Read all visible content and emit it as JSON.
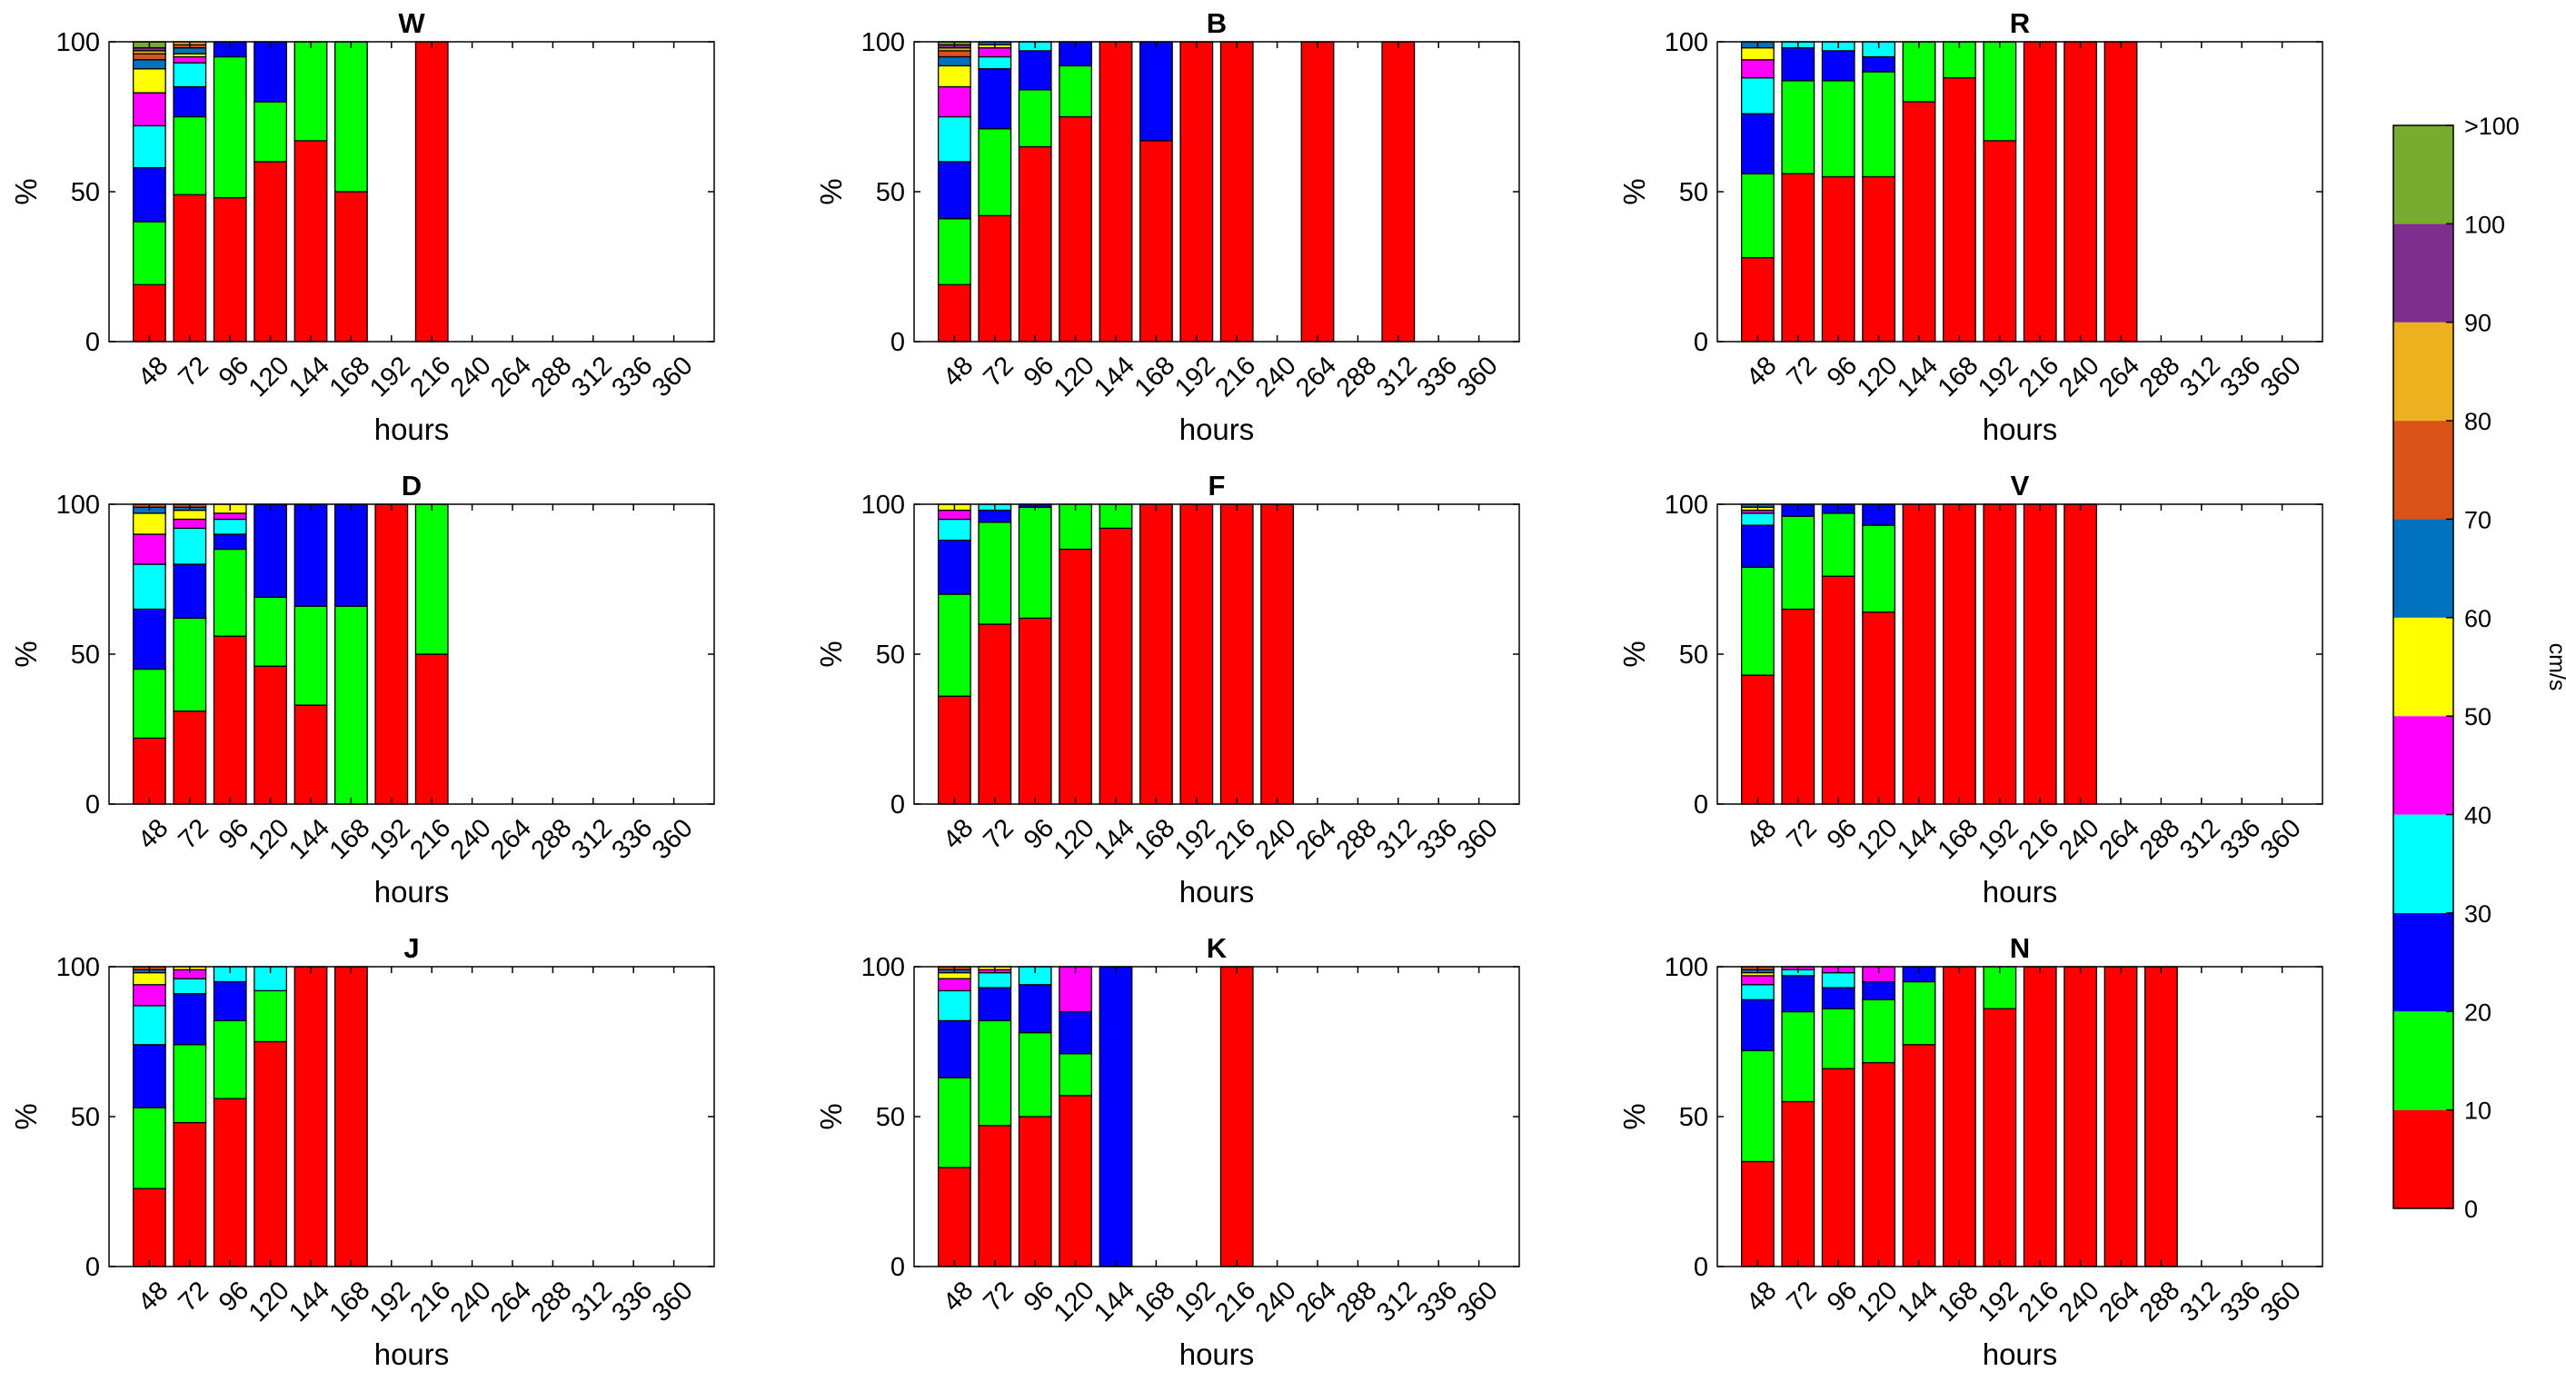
{
  "colors": {
    "bins": [
      "#ff0000",
      "#00ff00",
      "#0000ff",
      "#00ffff",
      "#ff00ff",
      "#ffff00",
      "#0072bd",
      "#d95319",
      "#edb120",
      "#7e2f8e",
      "#77ac30"
    ],
    "stroke": "#000000"
  },
  "colorbar": {
    "tick_labels": [
      "0",
      "10",
      "20",
      "30",
      "40",
      "50",
      "60",
      "70",
      "80",
      "90",
      "100",
      ">100"
    ],
    "label": "cm/s"
  },
  "chart_data": [
    {
      "type": "bar",
      "stacked": true,
      "title": "W",
      "categories": [
        "48",
        "72",
        "96",
        "120",
        "144",
        "168",
        "192",
        "216",
        "240",
        "264",
        "288",
        "312",
        "336",
        "360"
      ],
      "xlabel": "hours",
      "ylabel": "%",
      "ylim": [
        0,
        100
      ],
      "yticks": [
        "0",
        "50",
        "100"
      ],
      "stacks": [
        [
          19,
          21,
          18,
          14,
          11,
          8,
          3,
          2,
          1,
          1,
          2
        ],
        [
          49,
          26,
          10,
          8,
          2,
          1,
          2,
          1,
          1
        ],
        [
          48,
          47,
          5
        ],
        [
          60,
          20,
          20
        ],
        [
          67,
          33
        ],
        [
          50,
          50
        ],
        [],
        [
          100
        ],
        [],
        [],
        [],
        [],
        [],
        []
      ]
    },
    {
      "type": "bar",
      "stacked": true,
      "title": "B",
      "categories": [
        "48",
        "72",
        "96",
        "120",
        "144",
        "168",
        "192",
        "216",
        "240",
        "264",
        "288",
        "312",
        "336",
        "360"
      ],
      "xlabel": "hours",
      "ylabel": "%",
      "ylim": [
        0,
        100
      ],
      "yticks": [
        "0",
        "50",
        "100"
      ],
      "stacks": [
        [
          19,
          22,
          19,
          15,
          10,
          7,
          3,
          2,
          1,
          1,
          1
        ],
        [
          42,
          29,
          20,
          4,
          3,
          1,
          1
        ],
        [
          65,
          19,
          13,
          3
        ],
        [
          75,
          17,
          8
        ],
        [
          100
        ],
        [
          67,
          0,
          33
        ],
        [
          100
        ],
        [
          100
        ],
        [],
        [
          100
        ],
        [],
        [
          100
        ],
        [],
        []
      ]
    },
    {
      "type": "bar",
      "stacked": true,
      "title": "R",
      "categories": [
        "48",
        "72",
        "96",
        "120",
        "144",
        "168",
        "192",
        "216",
        "240",
        "264",
        "288",
        "312",
        "336",
        "360"
      ],
      "xlabel": "hours",
      "ylabel": "%",
      "ylim": [
        0,
        100
      ],
      "yticks": [
        "0",
        "50",
        "100"
      ],
      "stacks": [
        [
          28,
          28,
          20,
          12,
          6,
          4,
          2
        ],
        [
          56,
          31,
          11,
          2
        ],
        [
          55,
          32,
          10,
          3
        ],
        [
          55,
          35,
          5,
          5
        ],
        [
          80,
          20
        ],
        [
          88,
          12
        ],
        [
          67,
          33
        ],
        [
          100
        ],
        [
          100
        ],
        [
          100
        ],
        [],
        [],
        [],
        []
      ]
    },
    {
      "type": "bar",
      "stacked": true,
      "title": "D",
      "categories": [
        "48",
        "72",
        "96",
        "120",
        "144",
        "168",
        "192",
        "216",
        "240",
        "264",
        "288",
        "312",
        "336",
        "360"
      ],
      "xlabel": "hours",
      "ylabel": "%",
      "ylim": [
        0,
        100
      ],
      "yticks": [
        "0",
        "50",
        "100"
      ],
      "stacks": [
        [
          22,
          23,
          20,
          15,
          10,
          7,
          2,
          1
        ],
        [
          31,
          31,
          18,
          12,
          3,
          3,
          1,
          1
        ],
        [
          56,
          29,
          5,
          5,
          2,
          3
        ],
        [
          46,
          23,
          31
        ],
        [
          33,
          33,
          34
        ],
        [
          0,
          66,
          34
        ],
        [
          100
        ],
        [
          50,
          50
        ],
        [],
        [],
        [],
        [],
        [],
        []
      ]
    },
    {
      "type": "bar",
      "stacked": true,
      "title": "F",
      "categories": [
        "48",
        "72",
        "96",
        "120",
        "144",
        "168",
        "192",
        "216",
        "240",
        "264",
        "288",
        "312",
        "336",
        "360"
      ],
      "xlabel": "hours",
      "ylabel": "%",
      "ylim": [
        0,
        100
      ],
      "yticks": [
        "0",
        "50",
        "100"
      ],
      "stacks": [
        [
          36,
          34,
          18,
          7,
          3,
          2
        ],
        [
          60,
          34,
          4,
          2
        ],
        [
          62,
          37,
          1
        ],
        [
          85,
          15
        ],
        [
          92,
          8
        ],
        [
          100
        ],
        [
          100
        ],
        [
          100
        ],
        [
          100
        ],
        [],
        [],
        [],
        [],
        []
      ]
    },
    {
      "type": "bar",
      "stacked": true,
      "title": "V",
      "categories": [
        "48",
        "72",
        "96",
        "120",
        "144",
        "168",
        "192",
        "216",
        "240",
        "264",
        "288",
        "312",
        "336",
        "360"
      ],
      "xlabel": "hours",
      "ylabel": "%",
      "ylim": [
        0,
        100
      ],
      "yticks": [
        "0",
        "50",
        "100"
      ],
      "stacks": [
        [
          43,
          36,
          14,
          4,
          1,
          1,
          1
        ],
        [
          65,
          31,
          4
        ],
        [
          76,
          21,
          3
        ],
        [
          64,
          29,
          7
        ],
        [
          100
        ],
        [
          100
        ],
        [
          100
        ],
        [
          100
        ],
        [
          100
        ],
        [],
        [],
        [],
        [],
        []
      ]
    },
    {
      "type": "bar",
      "stacked": true,
      "title": "J",
      "categories": [
        "48",
        "72",
        "96",
        "120",
        "144",
        "168",
        "192",
        "216",
        "240",
        "264",
        "288",
        "312",
        "336",
        "360"
      ],
      "xlabel": "hours",
      "ylabel": "%",
      "ylim": [
        0,
        100
      ],
      "yticks": [
        "0",
        "50",
        "100"
      ],
      "stacks": [
        [
          26,
          27,
          21,
          13,
          7,
          4,
          1,
          1
        ],
        [
          48,
          26,
          17,
          5,
          3,
          1
        ],
        [
          56,
          26,
          13,
          5
        ],
        [
          75,
          17,
          0,
          8
        ],
        [
          100
        ],
        [
          100
        ],
        [],
        [],
        [],
        [],
        [],
        [],
        [],
        []
      ]
    },
    {
      "type": "bar",
      "stacked": true,
      "title": "K",
      "categories": [
        "48",
        "72",
        "96",
        "120",
        "144",
        "168",
        "192",
        "216",
        "240",
        "264",
        "288",
        "312",
        "336",
        "360"
      ],
      "xlabel": "hours",
      "ylabel": "%",
      "ylim": [
        0,
        100
      ],
      "yticks": [
        "0",
        "50",
        "100"
      ],
      "stacks": [
        [
          33,
          30,
          19,
          10,
          4,
          2,
          1,
          1
        ],
        [
          47,
          35,
          11,
          5,
          1,
          1
        ],
        [
          50,
          28,
          16,
          6
        ],
        [
          57,
          14,
          14,
          0,
          15
        ],
        [
          0,
          0,
          100
        ],
        [],
        [],
        [
          100
        ],
        [],
        [],
        [],
        [],
        [],
        []
      ]
    },
    {
      "type": "bar",
      "stacked": true,
      "title": "N",
      "categories": [
        "48",
        "72",
        "96",
        "120",
        "144",
        "168",
        "192",
        "216",
        "240",
        "264",
        "288",
        "312",
        "336",
        "360"
      ],
      "xlabel": "hours",
      "ylabel": "%",
      "ylim": [
        0,
        100
      ],
      "yticks": [
        "0",
        "50",
        "100"
      ],
      "stacks": [
        [
          35,
          37,
          17,
          5,
          3,
          1,
          1,
          1
        ],
        [
          55,
          30,
          12,
          2,
          1
        ],
        [
          66,
          20,
          7,
          5,
          2
        ],
        [
          68,
          21,
          6,
          0,
          5
        ],
        [
          74,
          21,
          5
        ],
        [
          100
        ],
        [
          86,
          14
        ],
        [
          100
        ],
        [
          100
        ],
        [
          100
        ],
        [
          100
        ],
        [],
        [],
        []
      ]
    }
  ]
}
